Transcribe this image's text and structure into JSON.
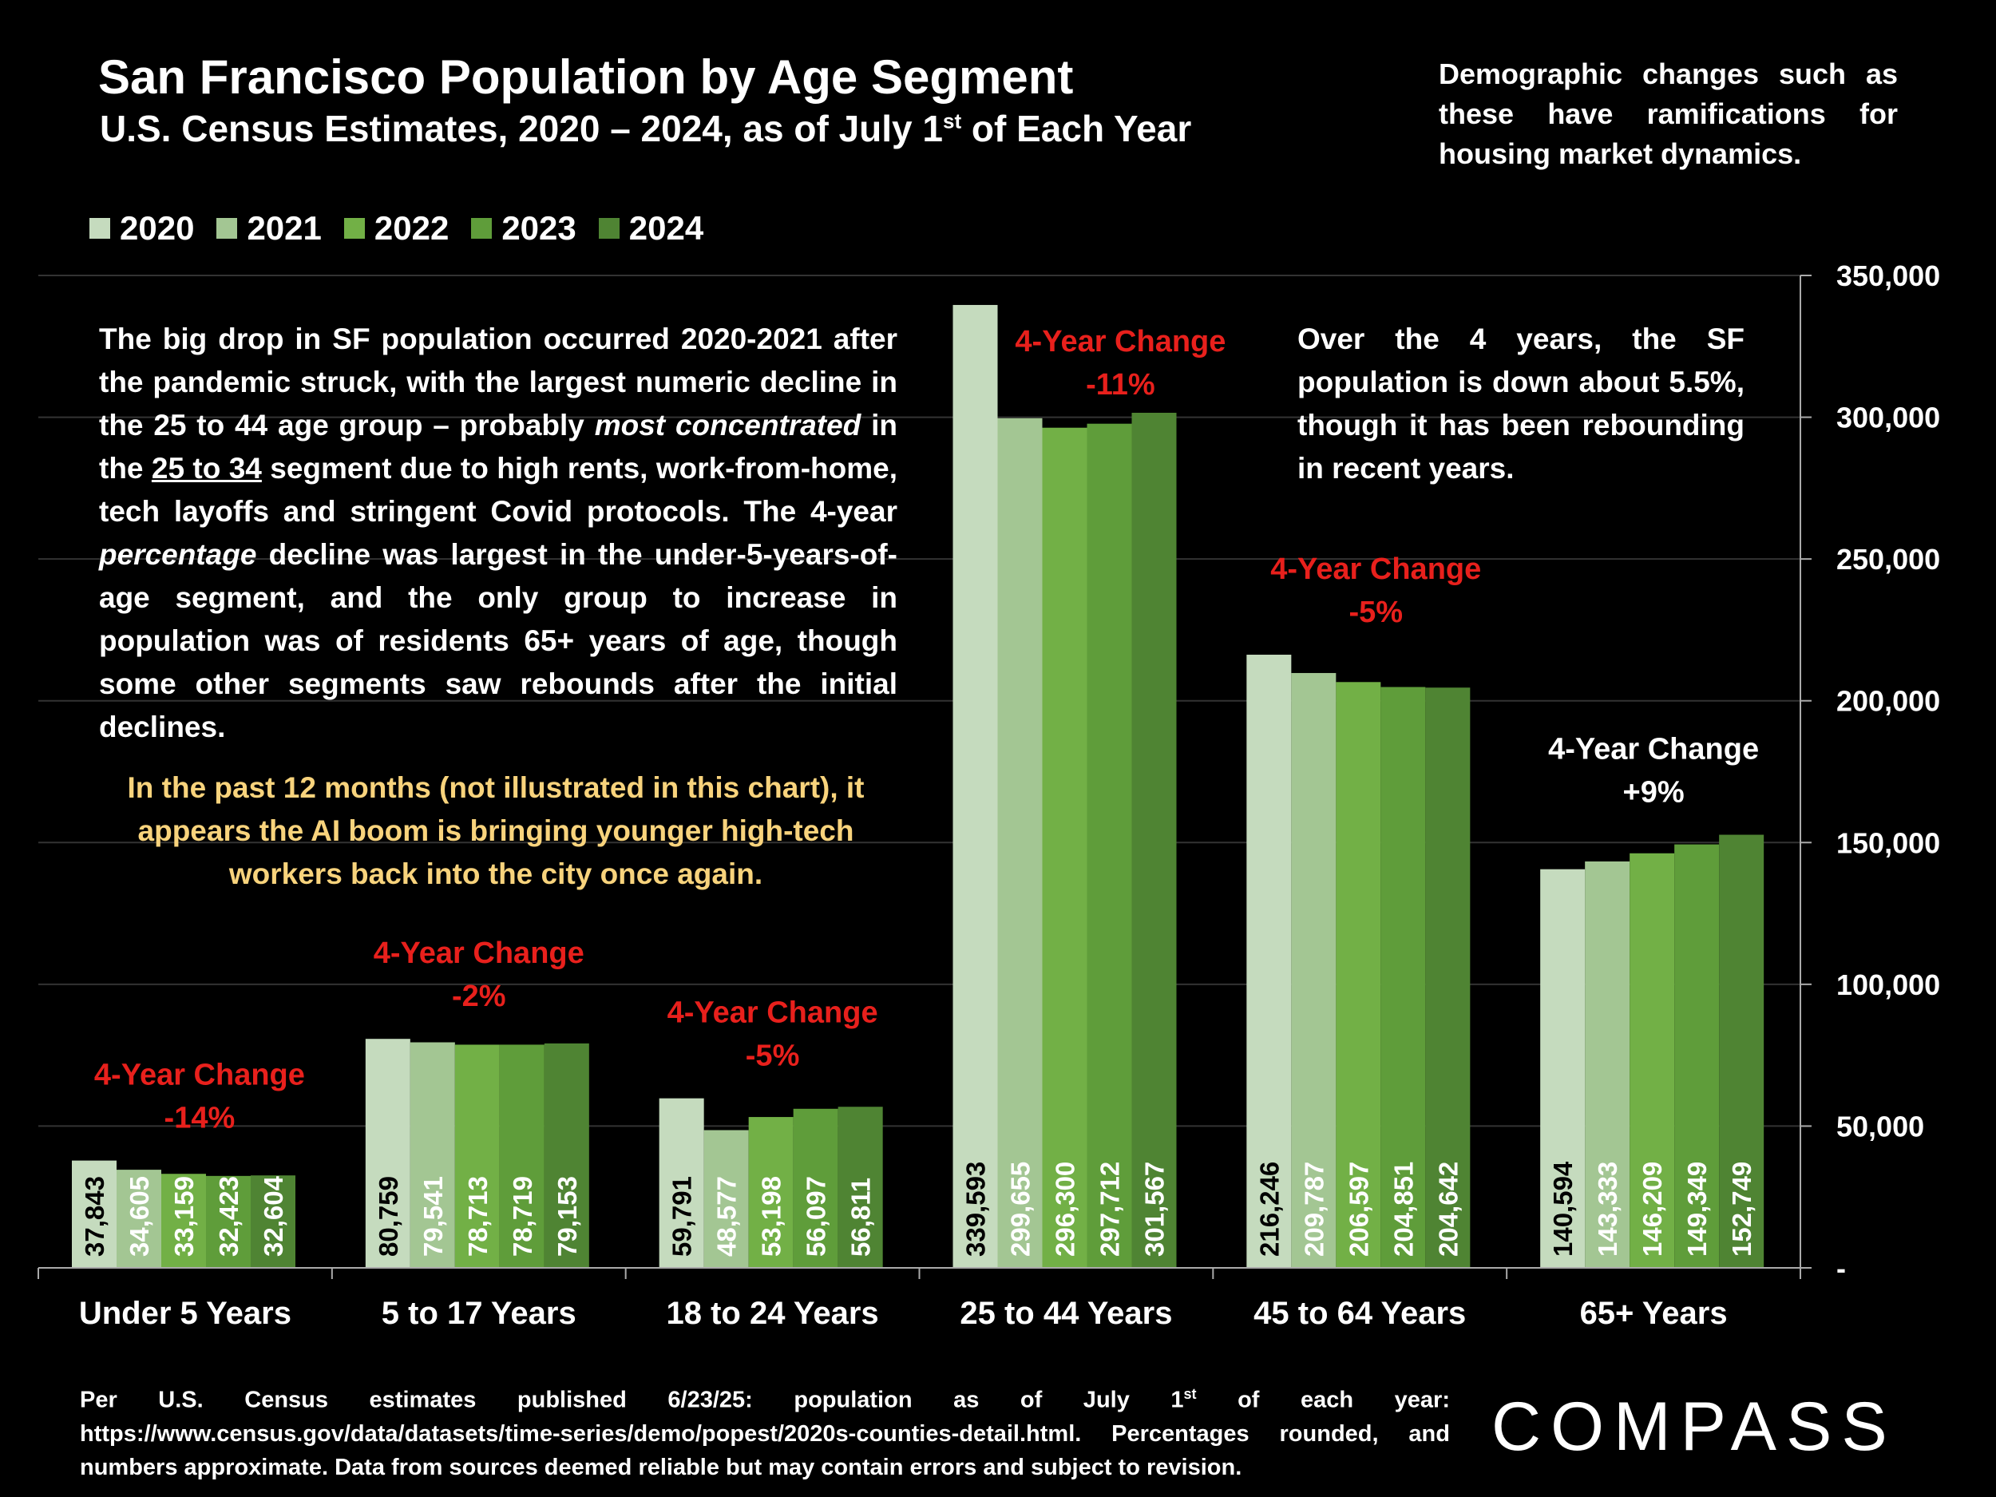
{
  "title": "San Francisco Population by Age Segment",
  "subtitle_main": "U.S. Census Estimates, 2020 – 2024, as of July 1",
  "subtitle_sup": "st",
  "subtitle_end": " of Each Year",
  "side_note": "Demographic changes such as these have ramifications for housing market dynamics.",
  "paragraph_main": {
    "p1": "The big drop in SF population occurred 2020-2021 after the pandemic struck, with the largest numeric decline in the 25 to 44 age group – probably ",
    "em1": "most concentrated",
    "p2": " in the ",
    "u1": "25 to 34",
    "p3": " segment due to high rents, work-from-home, tech layoffs and stringent Covid protocols. The 4-year ",
    "em2": "percentage",
    "p4": " decline was largest in the under-5-years-of-age segment, and the only group to increase in population was of residents 65+ years of age, though some other segments saw rebounds after the initial declines."
  },
  "paragraph_ai": "In the past 12 months (not illustrated in this chart), it appears the AI boom is bringing younger high-tech workers back into the city once again.",
  "paragraph_right": "Over the 4 years, the SF population is down about 5.5%, though it has been rebounding in recent years.",
  "footnote": {
    "a": "Per U.S. Census estimates published 6/23/25: population as of July 1",
    "sup": "st",
    "b": " of each year: https://www.census.gov/data/datasets/time-series/demo/popest/2020s-counties-detail.html. Percentages rounded, and numbers approximate. Data from sources deemed reliable but may contain errors and subject to revision."
  },
  "logo": "COMPASS",
  "colors": {
    "background": "#000000",
    "series": [
      "#c5dbbe",
      "#a3c693",
      "#72b046",
      "#5f9d3a",
      "#4f8433"
    ],
    "negative_change": "#e8201c",
    "positive_change": "#ffffff",
    "ai_text": "#f8d37c"
  },
  "chart_data": {
    "type": "bar",
    "categories": [
      "Under 5 Years",
      "5 to 17 Years",
      "18 to 24 Years",
      "25 to 44 Years",
      "45 to 64 Years",
      "65+ Years"
    ],
    "series": [
      {
        "name": "2020",
        "values": [
          37843,
          80759,
          59791,
          339593,
          216246,
          140594
        ]
      },
      {
        "name": "2021",
        "values": [
          34605,
          79541,
          48577,
          299655,
          209787,
          143333
        ]
      },
      {
        "name": "2022",
        "values": [
          33159,
          78713,
          53198,
          296300,
          206597,
          146209
        ]
      },
      {
        "name": "2023",
        "values": [
          32423,
          78719,
          56097,
          297712,
          204851,
          149349
        ]
      },
      {
        "name": "2024",
        "values": [
          32604,
          79153,
          56811,
          301567,
          204642,
          152749
        ]
      }
    ],
    "value_labels": [
      [
        "37,843",
        "34,605",
        "33,159",
        "32,423",
        "32,604"
      ],
      [
        "80,759",
        "79,541",
        "78,713",
        "78,719",
        "79,153"
      ],
      [
        "59,791",
        "48,577",
        "53,198",
        "56,097",
        "56,811"
      ],
      [
        "339,593",
        "299,655",
        "296,300",
        "297,712",
        "301,567"
      ],
      [
        "216,246",
        "209,787",
        "206,597",
        "204,851",
        "204,642"
      ],
      [
        "140,594",
        "143,333",
        "146,209",
        "149,349",
        "152,749"
      ]
    ],
    "annotations": [
      {
        "label": "4-Year Change",
        "value": "-14%",
        "negative": true
      },
      {
        "label": "4-Year Change",
        "value": "-2%",
        "negative": true
      },
      {
        "label": "4-Year Change",
        "value": "-5%",
        "negative": true
      },
      {
        "label": "4-Year Change",
        "value": "-11%",
        "negative": true
      },
      {
        "label": "4-Year Change",
        "value": "-5%",
        "negative": true
      },
      {
        "label": "4-Year Change",
        "value": "+9%",
        "negative": false
      }
    ],
    "y_ticks": [
      0,
      50000,
      100000,
      150000,
      200000,
      250000,
      300000,
      350000
    ],
    "y_tick_labels": [
      "-",
      "50,000",
      "100,000",
      "150,000",
      "200,000",
      "250,000",
      "300,000",
      "350,000"
    ],
    "ylim": [
      0,
      350000
    ],
    "y_axis_side": "right",
    "grid": true,
    "legend_position": "top-left"
  }
}
